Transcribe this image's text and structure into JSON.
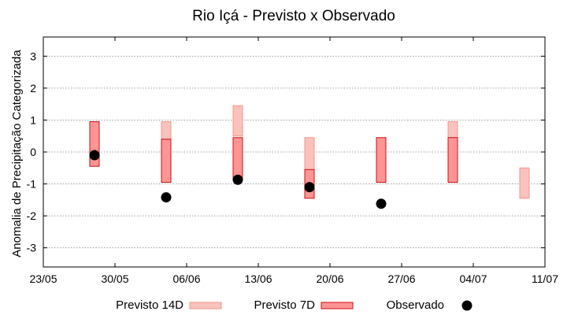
{
  "chart_data": {
    "type": "bar",
    "title": "Rio Içá - Previsto x Observado",
    "xlabel": "",
    "ylabel": "Anomalia de Precipitação Categorizada",
    "xlim": [
      "2024-05-23",
      "2024-07-11"
    ],
    "ylim": [
      -3.6,
      3.6
    ],
    "x_tick_labels": [
      "23/05",
      "30/05",
      "06/06",
      "13/06",
      "20/06",
      "27/06",
      "04/07",
      "11/07"
    ],
    "y_ticks": [
      3,
      2,
      1,
      0,
      -1,
      -2,
      -3
    ],
    "grid": true,
    "legend_position": "bottom",
    "series": [
      {
        "name": "Previsto 14D",
        "kind": "range-bar",
        "color": "#f9c2bd",
        "edge_color": "#f4958c",
        "points": [
          {
            "x": "2024-06-04",
            "low": 0.4,
            "high": 0.95
          },
          {
            "x": "2024-06-11",
            "low": 0.5,
            "high": 1.45
          },
          {
            "x": "2024-06-18",
            "low": -0.55,
            "high": 0.45
          },
          {
            "x": "2024-07-02",
            "low": 0.45,
            "high": 0.95
          },
          {
            "x": "2024-07-09",
            "low": -1.45,
            "high": -0.5
          }
        ]
      },
      {
        "name": "Previsto 7D",
        "kind": "range-bar",
        "color": "#ff9494",
        "edge_color": "#cc1010",
        "points": [
          {
            "x": "2024-05-28",
            "low": -0.45,
            "high": 0.95
          },
          {
            "x": "2024-06-04",
            "low": -0.95,
            "high": 0.4
          },
          {
            "x": "2024-06-11",
            "low": -0.85,
            "high": 0.45
          },
          {
            "x": "2024-06-18",
            "low": -1.45,
            "high": -0.55
          },
          {
            "x": "2024-06-25",
            "low": -0.95,
            "high": 0.45
          },
          {
            "x": "2024-07-02",
            "low": -0.95,
            "high": 0.45
          }
        ]
      },
      {
        "name": "Observado",
        "kind": "scatter",
        "color": "#000000",
        "points": [
          {
            "x": "2024-05-28",
            "y": -0.1
          },
          {
            "x": "2024-06-04",
            "y": -1.42
          },
          {
            "x": "2024-06-11",
            "y": -0.87
          },
          {
            "x": "2024-06-18",
            "y": -1.1
          },
          {
            "x": "2024-06-25",
            "y": -1.62
          }
        ]
      }
    ]
  }
}
